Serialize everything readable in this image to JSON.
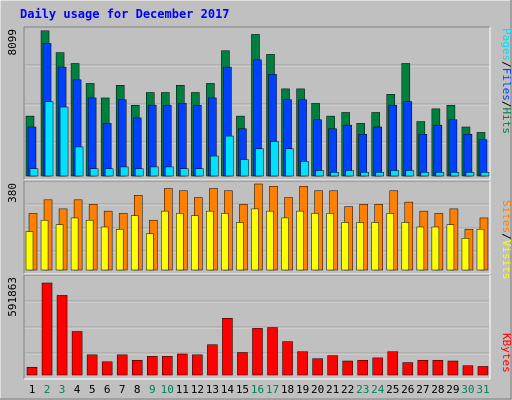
{
  "title": "Daily usage for December 2017",
  "colors": {
    "title": "#0000ff",
    "background": "#c0c0c0",
    "hits": "#008040",
    "files": "#0040ff",
    "pages": "#00e0ff",
    "visits": "#ffff00",
    "sites": "#ff8000",
    "kbytes": "#ff0000",
    "weekday_label": "#000000",
    "weekend_label": "#00805c"
  },
  "chart_data": [
    {
      "type": "bar",
      "panel": "hits-files-pages",
      "ymax_label": "8099",
      "ymax": 8099,
      "legend": [
        "Pages",
        "/",
        "Files",
        "/",
        "Hits"
      ],
      "legend_placement": "right",
      "categories": [
        "1",
        "2",
        "3",
        "4",
        "5",
        "6",
        "7",
        "8",
        "9",
        "10",
        "11",
        "12",
        "13",
        "14",
        "15",
        "16",
        "17",
        "18",
        "19",
        "20",
        "21",
        "22",
        "23",
        "24",
        "25",
        "26",
        "27",
        "28",
        "29",
        "30",
        "31"
      ],
      "series": [
        {
          "name": "Hits",
          "values": [
            3300,
            8000,
            6800,
            6200,
            5100,
            4300,
            5000,
            3900,
            4600,
            4600,
            5000,
            4600,
            5100,
            6900,
            3300,
            7800,
            6700,
            4800,
            4800,
            4000,
            3300,
            3500,
            2900,
            3500,
            4500,
            6200,
            3000,
            3700,
            3900,
            2700,
            2400
          ]
        },
        {
          "name": "Files",
          "values": [
            2700,
            7300,
            6000,
            5300,
            4300,
            2900,
            4200,
            3200,
            3900,
            3900,
            4000,
            3900,
            4300,
            6000,
            2600,
            6400,
            5600,
            4200,
            4200,
            3100,
            2600,
            2800,
            2300,
            2700,
            3900,
            4100,
            2300,
            2800,
            3100,
            2300,
            2000
          ]
        },
        {
          "name": "Pages",
          "values": [
            400,
            4100,
            3800,
            1600,
            400,
            400,
            500,
            400,
            500,
            500,
            400,
            400,
            1100,
            2200,
            900,
            1500,
            1900,
            1500,
            800,
            300,
            200,
            300,
            200,
            200,
            300,
            300,
            200,
            200,
            200,
            200,
            200
          ]
        }
      ]
    },
    {
      "type": "bar",
      "panel": "visits-sites",
      "ymax_label": "380",
      "ymax": 380,
      "legend": [
        "Sites",
        "/",
        "Visits"
      ],
      "legend_placement": "right",
      "categories": [
        "1",
        "2",
        "3",
        "4",
        "5",
        "6",
        "7",
        "8",
        "9",
        "10",
        "11",
        "12",
        "13",
        "14",
        "15",
        "16",
        "17",
        "18",
        "19",
        "20",
        "21",
        "22",
        "23",
        "24",
        "25",
        "26",
        "27",
        "28",
        "29",
        "30",
        "31"
      ],
      "series": [
        {
          "name": "Sites",
          "values": [
            250,
            310,
            270,
            310,
            290,
            260,
            250,
            330,
            220,
            360,
            350,
            320,
            360,
            350,
            290,
            380,
            370,
            320,
            370,
            350,
            350,
            280,
            290,
            290,
            350,
            300,
            260,
            250,
            270,
            180,
            230
          ]
        },
        {
          "name": "Visits",
          "values": [
            170,
            220,
            200,
            230,
            220,
            190,
            180,
            240,
            160,
            260,
            250,
            240,
            260,
            250,
            210,
            270,
            260,
            230,
            260,
            250,
            250,
            210,
            210,
            210,
            250,
            210,
            190,
            190,
            200,
            140,
            180
          ]
        }
      ]
    },
    {
      "type": "bar",
      "panel": "kbytes",
      "ymax_label": "591863",
      "ymax": 591863,
      "legend": [
        "KBytes"
      ],
      "legend_placement": "right",
      "categories": [
        "1",
        "2",
        "3",
        "4",
        "5",
        "6",
        "7",
        "8",
        "9",
        "10",
        "11",
        "12",
        "13",
        "14",
        "15",
        "16",
        "17",
        "18",
        "19",
        "20",
        "21",
        "22",
        "23",
        "24",
        "25",
        "26",
        "27",
        "28",
        "29",
        "30",
        "31"
      ],
      "series": [
        {
          "name": "KBytes",
          "values": [
            50000,
            591863,
            512000,
            280000,
            130000,
            85000,
            130000,
            95000,
            120000,
            120000,
            135000,
            130000,
            195000,
            365000,
            145000,
            300000,
            305000,
            215000,
            150000,
            105000,
            125000,
            90000,
            95000,
            110000,
            150000,
            80000,
            95000,
            95000,
            90000,
            60000,
            55000
          ]
        }
      ]
    }
  ],
  "x_labels": {
    "days": [
      "1",
      "2",
      "3",
      "4",
      "5",
      "6",
      "7",
      "8",
      "9",
      "10",
      "11",
      "12",
      "13",
      "14",
      "15",
      "16",
      "17",
      "18",
      "19",
      "20",
      "21",
      "22",
      "23",
      "24",
      "25",
      "26",
      "27",
      "28",
      "29",
      "30",
      "31"
    ],
    "weekend": [
      2,
      3,
      9,
      10,
      16,
      17,
      23,
      24,
      30,
      31
    ]
  }
}
